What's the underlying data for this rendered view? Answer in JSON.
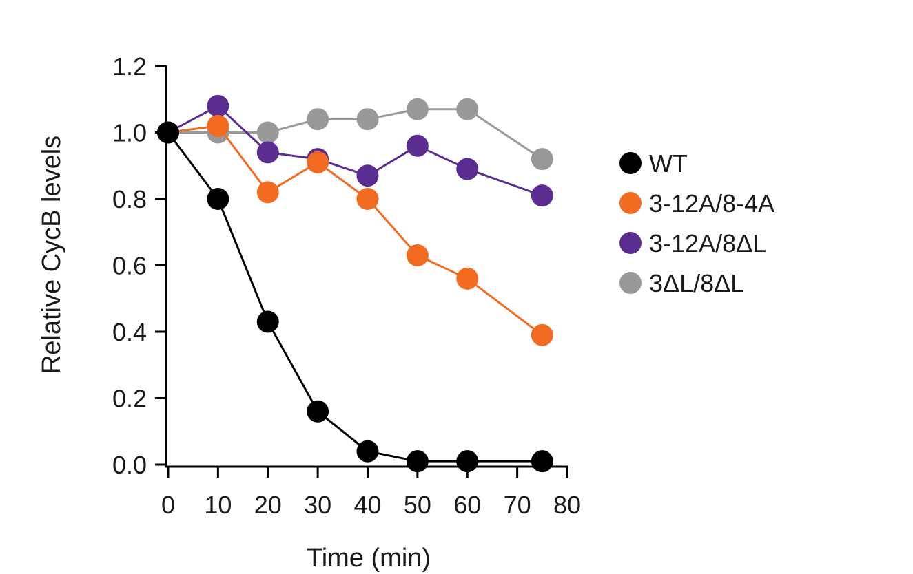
{
  "chart_data": {
    "type": "line",
    "title": "",
    "xlabel": "Time (min)",
    "ylabel": "Relative CycB levels",
    "xlim": [
      0,
      80
    ],
    "ylim": [
      0,
      1.2
    ],
    "xticks": [
      0,
      10,
      20,
      30,
      40,
      50,
      60,
      70,
      80
    ],
    "xtick_labels": [
      "0",
      "10",
      "20",
      "30",
      "40",
      "50",
      "60",
      "70",
      "80"
    ],
    "yticks": [
      0,
      0.2,
      0.4,
      0.6,
      0.8,
      1.0,
      1.2
    ],
    "ytick_labels": [
      "0.0",
      "0.2",
      "0.4",
      "0.6",
      "0.8",
      "1.0",
      "1.2"
    ],
    "grid": false,
    "legend_position": "right",
    "x": [
      0,
      10,
      20,
      30,
      40,
      50,
      60,
      75
    ],
    "series": [
      {
        "name": "WT",
        "color": "#000000",
        "values": [
          1.0,
          0.8,
          0.43,
          0.16,
          0.04,
          0.01,
          0.01,
          0.01
        ]
      },
      {
        "name": "3-12A/8-4A",
        "color": "#f26b21",
        "values": [
          1.0,
          1.02,
          0.82,
          0.91,
          0.8,
          0.63,
          0.56,
          0.39
        ]
      },
      {
        "name": "3-12A/8ΔL",
        "color": "#5b2d91",
        "values": [
          1.0,
          1.08,
          0.94,
          0.92,
          0.87,
          0.96,
          0.89,
          0.81
        ]
      },
      {
        "name": "3ΔL/8ΔL",
        "color": "#999999",
        "values": [
          1.0,
          1.0,
          1.0,
          1.04,
          1.04,
          1.07,
          1.07,
          0.92
        ]
      }
    ],
    "draw_order": [
      3,
      2,
      1,
      0
    ]
  }
}
